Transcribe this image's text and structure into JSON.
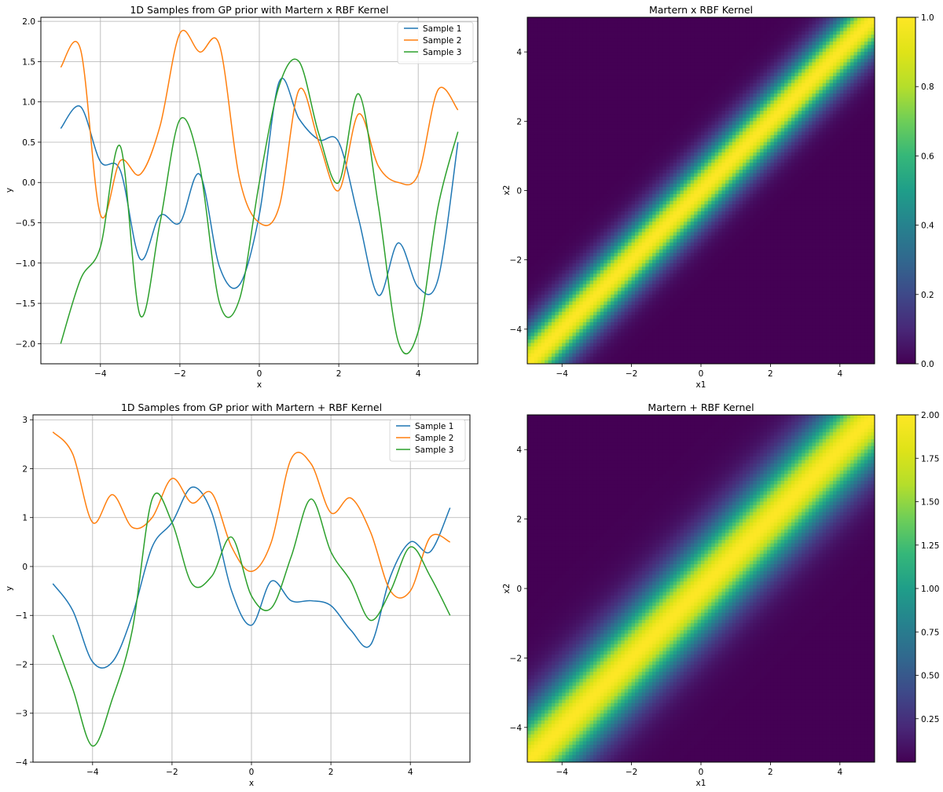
{
  "chart_data": [
    {
      "id": "line1",
      "type": "line",
      "title": "1D Samples from GP prior with Martern x RBF Kernel",
      "xlabel": "x",
      "ylabel": "y",
      "xlim": [
        -5.5,
        5.5
      ],
      "ylim": [
        -2.25,
        2.05
      ],
      "xticks": [
        -4,
        -2,
        0,
        2,
        4
      ],
      "xtick_labels": [
        "−4",
        "−2",
        "0",
        "2",
        "4"
      ],
      "yticks": [
        -2.0,
        -1.5,
        -1.0,
        -0.5,
        0.0,
        0.5,
        1.0,
        1.5,
        2.0
      ],
      "ytick_labels": [
        "−2.0",
        "−1.5",
        "−1.0",
        "−0.5",
        "0.0",
        "0.5",
        "1.0",
        "1.5",
        "2.0"
      ],
      "grid": true,
      "legend_position": "top-right",
      "x": [
        -5.0,
        -4.5,
        -4.0,
        -3.5,
        -3.0,
        -2.5,
        -2.0,
        -1.5,
        -1.0,
        -0.5,
        0.0,
        0.5,
        1.0,
        1.5,
        2.0,
        2.5,
        3.0,
        3.5,
        4.0,
        4.5,
        5.0
      ],
      "series": [
        {
          "name": "Sample 1",
          "color": "#1f77b4",
          "values": [
            0.67,
            0.94,
            0.26,
            0.15,
            -0.95,
            -0.41,
            -0.5,
            0.1,
            -1.05,
            -1.27,
            -0.4,
            1.25,
            0.79,
            0.53,
            0.5,
            -0.45,
            -1.4,
            -0.75,
            -1.3,
            -1.2,
            0.5
          ]
        },
        {
          "name": "Sample 2",
          "color": "#ff7f0e",
          "values": [
            1.43,
            1.65,
            -0.4,
            0.27,
            0.1,
            0.7,
            1.85,
            1.62,
            1.7,
            0.05,
            -0.5,
            -0.3,
            1.15,
            0.5,
            -0.1,
            0.85,
            0.2,
            0.0,
            0.1,
            1.15,
            0.9
          ]
        },
        {
          "name": "Sample 3",
          "color": "#2ca02c",
          "values": [
            -2.0,
            -1.2,
            -0.8,
            0.45,
            -1.65,
            -0.5,
            0.78,
            0.2,
            -1.5,
            -1.45,
            0.0,
            1.2,
            1.5,
            0.6,
            0.0,
            1.1,
            -0.3,
            -1.98,
            -1.85,
            -0.3,
            0.63
          ]
        }
      ]
    },
    {
      "id": "heat1",
      "type": "heatmap",
      "title": "Martern x RBF Kernel",
      "xlabel": "x1",
      "ylabel": "x2",
      "xlim": [
        -5,
        5
      ],
      "ylim": [
        -5,
        5
      ],
      "xticks": [
        -4,
        -2,
        0,
        2,
        4
      ],
      "xtick_labels": [
        "−4",
        "−2",
        "0",
        "2",
        "4"
      ],
      "yticks": [
        -4,
        -2,
        0,
        2,
        4
      ],
      "ytick_labels": [
        "−4",
        "−2",
        "0",
        "2",
        "4"
      ],
      "colormap": "viridis",
      "vmin": 0.0,
      "vmax": 1.0,
      "kernel": "product",
      "colorbar_ticks": [
        0.0,
        0.2,
        0.4,
        0.6,
        0.8,
        1.0
      ],
      "colorbar_tick_labels": [
        "0.0",
        "0.2",
        "0.4",
        "0.6",
        "0.8",
        "1.0"
      ]
    },
    {
      "id": "line2",
      "type": "line",
      "title": "1D Samples from GP prior with Martern + RBF Kernel",
      "xlabel": "x",
      "ylabel": "y",
      "xlim": [
        -5.5,
        5.5
      ],
      "ylim": [
        -4.0,
        3.1
      ],
      "xticks": [
        -4,
        -2,
        0,
        2,
        4
      ],
      "xtick_labels": [
        "−4",
        "−2",
        "0",
        "2",
        "4"
      ],
      "yticks": [
        -4,
        -3,
        -2,
        -1,
        0,
        1,
        2,
        3
      ],
      "ytick_labels": [
        "−4",
        "−3",
        "−2",
        "−1",
        "0",
        "1",
        "2",
        "3"
      ],
      "grid": true,
      "legend_position": "top-right",
      "x": [
        -5.0,
        -4.5,
        -4.0,
        -3.5,
        -3.0,
        -2.5,
        -2.0,
        -1.5,
        -1.0,
        -0.5,
        0.0,
        0.5,
        1.0,
        1.5,
        2.0,
        2.5,
        3.0,
        3.5,
        4.0,
        4.5,
        5.0
      ],
      "series": [
        {
          "name": "Sample 1",
          "color": "#1f77b4",
          "values": [
            -0.35,
            -0.9,
            -1.95,
            -1.95,
            -1.0,
            0.4,
            0.9,
            1.62,
            1.1,
            -0.5,
            -1.2,
            -0.3,
            -0.7,
            -0.7,
            -0.8,
            -1.3,
            -1.6,
            -0.2,
            0.5,
            0.3,
            1.2
          ]
        },
        {
          "name": "Sample 2",
          "color": "#ff7f0e",
          "values": [
            2.75,
            2.3,
            0.9,
            1.47,
            0.8,
            1.0,
            1.8,
            1.3,
            1.5,
            0.4,
            -0.1,
            0.5,
            2.2,
            2.1,
            1.1,
            1.4,
            0.7,
            -0.5,
            -0.5,
            0.6,
            0.5
          ]
        },
        {
          "name": "Sample 3",
          "color": "#2ca02c",
          "values": [
            -1.4,
            -2.5,
            -3.67,
            -2.7,
            -1.3,
            1.38,
            0.9,
            -0.35,
            -0.2,
            0.6,
            -0.6,
            -0.85,
            0.2,
            1.38,
            0.3,
            -0.3,
            -1.1,
            -0.5,
            0.4,
            -0.2,
            -1.0
          ]
        }
      ]
    },
    {
      "id": "heat2",
      "type": "heatmap",
      "title": "Martern + RBF Kernel",
      "xlabel": "x1",
      "ylabel": "x2",
      "xlim": [
        -5,
        5
      ],
      "ylim": [
        -5,
        5
      ],
      "xticks": [
        -4,
        -2,
        0,
        2,
        4
      ],
      "xtick_labels": [
        "−4",
        "−2",
        "0",
        "2",
        "4"
      ],
      "yticks": [
        -4,
        -2,
        0,
        2,
        4
      ],
      "ytick_labels": [
        "−4",
        "−2",
        "0",
        "2",
        "4"
      ],
      "colormap": "viridis",
      "vmin": 0.0,
      "vmax": 2.0,
      "kernel": "sum",
      "colorbar_ticks": [
        0.25,
        0.5,
        0.75,
        1.0,
        1.25,
        1.5,
        1.75,
        2.0
      ],
      "colorbar_tick_labels": [
        "0.25",
        "0.50",
        "0.75",
        "1.00",
        "1.25",
        "1.50",
        "1.75",
        "2.00"
      ]
    }
  ]
}
